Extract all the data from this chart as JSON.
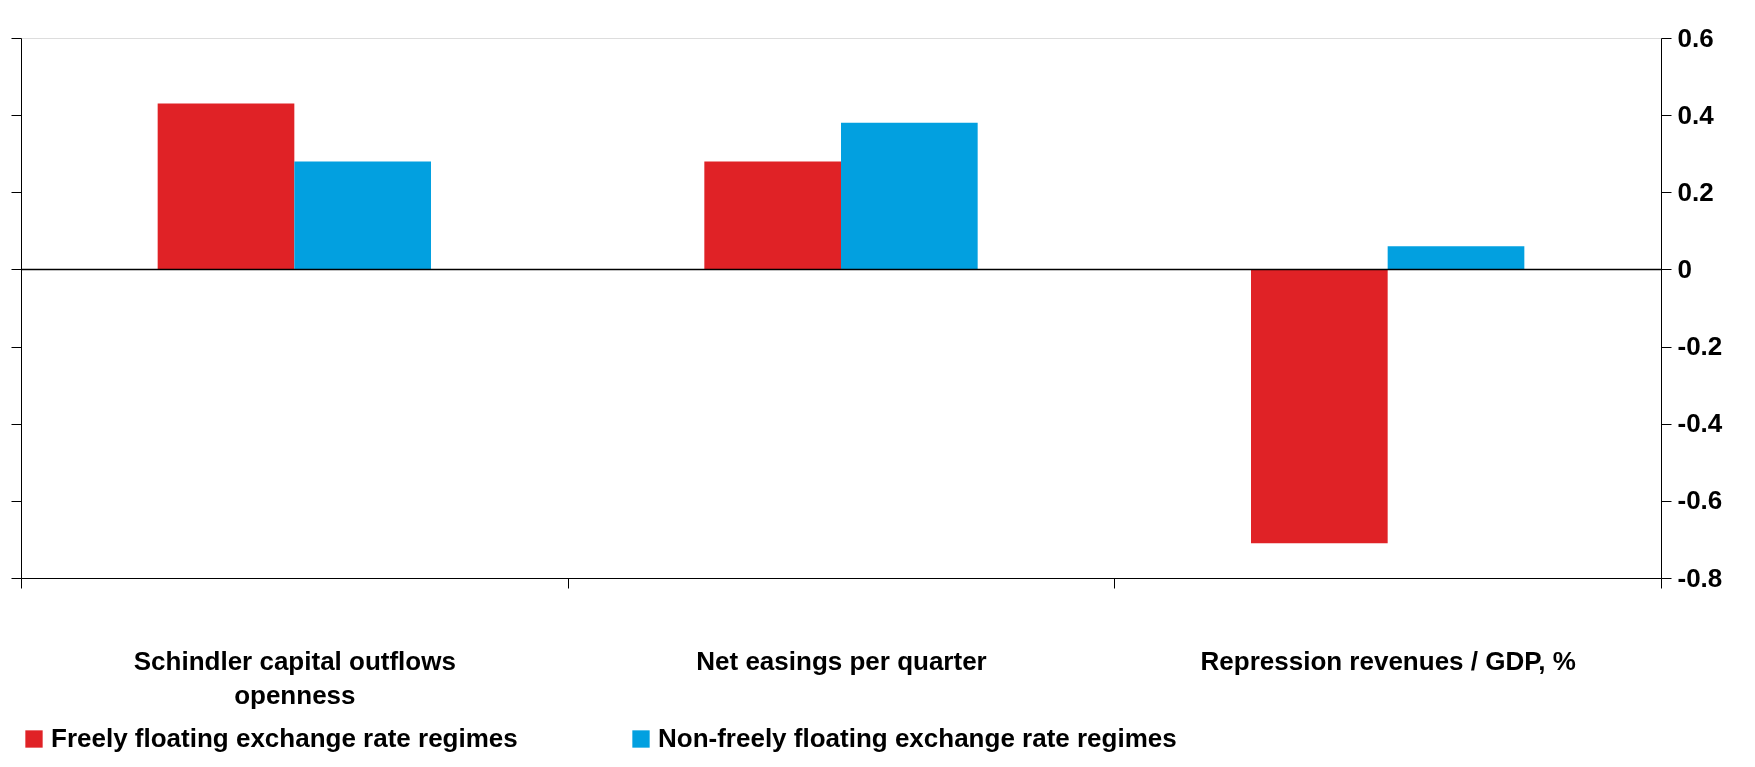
{
  "chart_data": {
    "type": "bar",
    "categories": [
      "Schindler capital outflows openness",
      "Net easings per quarter",
      "Repression revenues / GDP, %"
    ],
    "series": [
      {
        "name": "Freely floating exchange rate regimes",
        "color": "#e02226",
        "values": [
          0.43,
          0.28,
          -0.71
        ]
      },
      {
        "name": "Non-freely floating exchange rate regimes",
        "color": "#02a0e0",
        "values": [
          0.28,
          0.38,
          0.06
        ]
      }
    ],
    "ylim": [
      -0.8,
      0.6
    ],
    "yticks": [
      -0.8,
      -0.6,
      -0.4,
      -0.2,
      0,
      0.2,
      0.4,
      0.6
    ],
    "ref_lines": [
      {
        "axis": "y",
        "value": 0,
        "color": "#000000"
      }
    ],
    "grid": false,
    "legend": "bottom"
  }
}
